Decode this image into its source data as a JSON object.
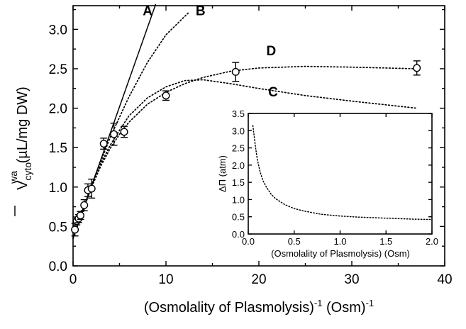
{
  "chart_data": [
    {
      "type": "scatter",
      "xlabel_main": "(Osmolality of Plasmolysis)",
      "xlabel_sup1": "-1",
      "xlabel_tail": " (Osm)",
      "xlabel_sup2": "-1",
      "ylabel_main": "V",
      "ylabel_sub": "cyto",
      "ylabel_sup": "wa",
      "ylabel_tail": " (µL/mg DW)",
      "xlim": [
        0,
        40
      ],
      "ylim": [
        0,
        3.3
      ],
      "xticks": [
        0,
        10,
        20,
        30,
        40
      ],
      "yticks": [
        0.0,
        0.5,
        1.0,
        1.5,
        2.0,
        2.5,
        3.0
      ],
      "xtick_labels": [
        "0",
        "10",
        "20",
        "30",
        "40"
      ],
      "ytick_labels": [
        "0.0",
        "0.5",
        "1.0",
        "1.5",
        "2.0",
        "2.5",
        "3.0"
      ],
      "grid": false,
      "points": [
        {
          "x": 0.2,
          "y": 0.46,
          "err": 0.08
        },
        {
          "x": 0.4,
          "y": 0.57,
          "err": 0.05
        },
        {
          "x": 0.6,
          "y": 0.6,
          "err": 0.05
        },
        {
          "x": 0.8,
          "y": 0.64,
          "err": 0.05
        },
        {
          "x": 1.2,
          "y": 0.77,
          "err": 0.07
        },
        {
          "x": 1.6,
          "y": 0.96,
          "err": 0.08
        },
        {
          "x": 2.0,
          "y": 0.98,
          "err": 0.12
        },
        {
          "x": 3.3,
          "y": 1.55,
          "err": 0.07
        },
        {
          "x": 4.4,
          "y": 1.67,
          "err": 0.14
        },
        {
          "x": 5.5,
          "y": 1.7,
          "err": 0.07
        },
        {
          "x": 10.0,
          "y": 2.16,
          "err": 0.06
        },
        {
          "x": 17.5,
          "y": 2.46,
          "err": 0.12
        },
        {
          "x": 37.0,
          "y": 2.51,
          "err": 0.09
        }
      ],
      "curves": [
        {
          "name": "A",
          "style": "solid",
          "label_pos": [
            7.5,
            3.18
          ],
          "x": [
            0,
            8.9
          ],
          "y": [
            0.35,
            3.32
          ]
        },
        {
          "name": "B",
          "style": "dotted",
          "label_pos": [
            13.2,
            3.18
          ],
          "x": [
            0,
            2,
            4,
            6,
            8,
            10,
            12.5
          ],
          "y": [
            0.35,
            1.03,
            1.63,
            2.14,
            2.58,
            2.93,
            3.22
          ]
        },
        {
          "name": "C",
          "style": "dotted",
          "label_pos": [
            21.0,
            2.15
          ],
          "x": [
            0,
            1,
            2,
            3,
            4,
            5,
            6,
            8,
            10,
            12,
            14,
            17,
            20,
            25,
            30,
            37
          ],
          "y": [
            0.35,
            0.7,
            1.02,
            1.3,
            1.53,
            1.72,
            1.9,
            2.13,
            2.27,
            2.35,
            2.36,
            2.31,
            2.25,
            2.16,
            2.09,
            2.0
          ]
        },
        {
          "name": "D",
          "style": "dotted",
          "label_pos": [
            20.8,
            2.67
          ],
          "x": [
            0,
            1,
            2,
            3,
            4,
            5,
            6,
            8,
            10,
            12,
            14,
            17,
            20,
            25,
            30,
            37
          ],
          "y": [
            0.35,
            0.69,
            1.0,
            1.27,
            1.49,
            1.67,
            1.82,
            2.05,
            2.2,
            2.31,
            2.39,
            2.47,
            2.51,
            2.53,
            2.52,
            2.5
          ]
        }
      ]
    },
    {
      "type": "line",
      "xlabel": "(Osmolality of Plasmolysis) (Osm)",
      "ylabel": "ΔΠ (atm)",
      "xlim": [
        0,
        2.0
      ],
      "ylim": [
        0,
        3.5
      ],
      "xticks": [
        0.0,
        0.5,
        1.0,
        1.5,
        2.0
      ],
      "yticks": [
        0.0,
        0.5,
        1.0,
        1.5,
        2.0,
        2.5,
        3.0,
        3.5
      ],
      "xtick_labels": [
        "0.0",
        "0.5",
        "1.0",
        "1.5",
        "2.0"
      ],
      "ytick_labels": [
        "0.0",
        "0.5",
        "1.0",
        "1.5",
        "2.0",
        "2.5",
        "3.0",
        "3.5"
      ],
      "grid": false,
      "series": [
        {
          "style": "dotted",
          "x": [
            0.05,
            0.08,
            0.1,
            0.13,
            0.16,
            0.2,
            0.25,
            0.3,
            0.4,
            0.5,
            0.6,
            0.8,
            1.0,
            1.2,
            1.5,
            1.8,
            2.0
          ],
          "y": [
            3.15,
            2.5,
            2.15,
            1.8,
            1.55,
            1.35,
            1.15,
            1.02,
            0.85,
            0.74,
            0.67,
            0.57,
            0.52,
            0.49,
            0.46,
            0.43,
            0.42
          ]
        }
      ]
    }
  ]
}
